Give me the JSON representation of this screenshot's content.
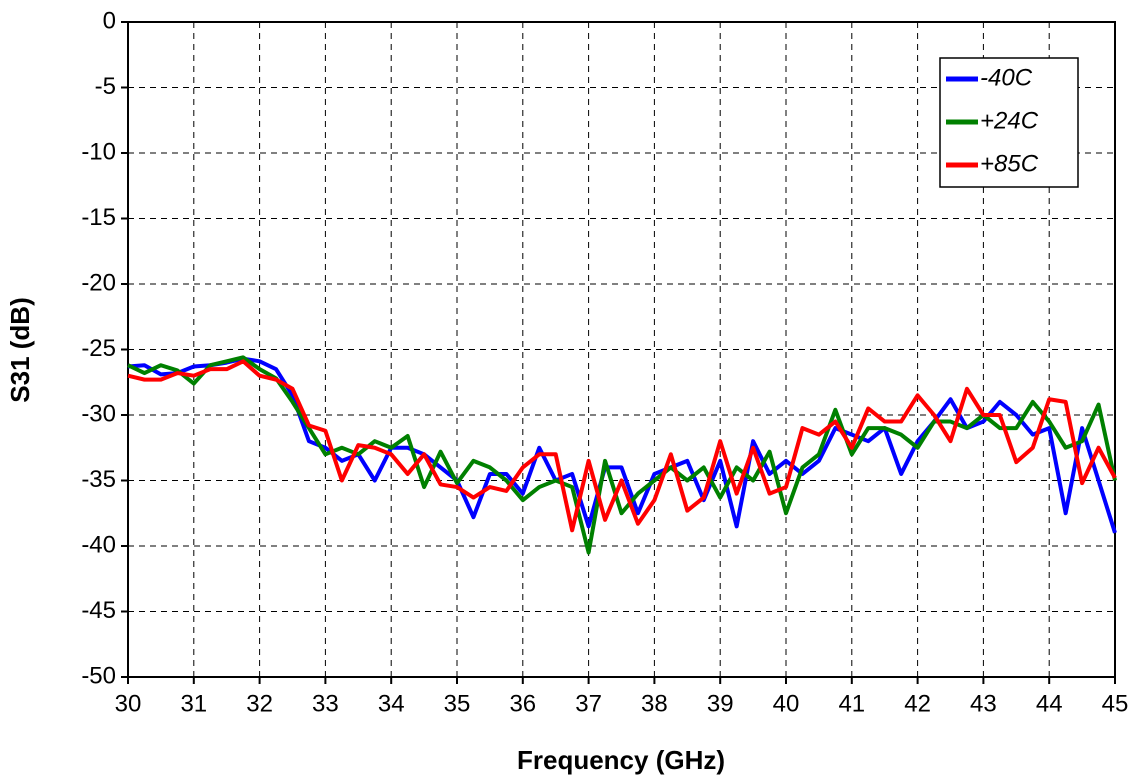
{
  "chart_data": {
    "type": "line",
    "x_label": "Frequency (GHz)",
    "y_label": "S31 (dB)",
    "x": [
      30,
      30.25,
      30.5,
      30.75,
      31,
      31.25,
      31.5,
      31.75,
      32,
      32.25,
      32.5,
      32.75,
      33,
      33.25,
      33.5,
      33.75,
      34,
      34.25,
      34.5,
      34.75,
      35,
      35.25,
      35.5,
      35.75,
      36,
      36.25,
      36.5,
      36.75,
      37,
      37.25,
      37.5,
      37.75,
      38,
      38.25,
      38.5,
      38.75,
      39,
      39.25,
      39.5,
      39.75,
      40,
      40.25,
      40.5,
      40.75,
      41,
      41.25,
      41.5,
      41.75,
      42,
      42.25,
      42.5,
      42.75,
      43,
      43.25,
      43.5,
      43.75,
      44,
      44.25,
      44.5,
      44.75,
      45
    ],
    "series": [
      {
        "name": "-40C",
        "color": "#0000ff",
        "values": [
          -26.3,
          -26.2,
          -26.9,
          -26.8,
          -26.3,
          -26.2,
          -26.0,
          -25.7,
          -25.9,
          -26.5,
          -28.5,
          -32,
          -32.5,
          -33.5,
          -33,
          -35,
          -32.5,
          -32.5,
          -33,
          -34,
          -35,
          -37.8,
          -34.5,
          -34.5,
          -36,
          -32.5,
          -35,
          -34.5,
          -38.5,
          -34,
          -34,
          -37.5,
          -34.5,
          -34,
          -33.5,
          -36.5,
          -33.5,
          -38.5,
          -32,
          -34.5,
          -33.5,
          -34.5,
          -33.5,
          -31,
          -31.5,
          -32,
          -31,
          -34.5,
          -32,
          -30.5,
          -28.8,
          -31,
          -30.5,
          -29,
          -30,
          -31.5,
          -31,
          -37.5,
          -31,
          -35,
          -39
        ]
      },
      {
        "name": "+24C",
        "color": "#008000",
        "values": [
          -26.2,
          -26.8,
          -26.2,
          -26.6,
          -27.6,
          -26.2,
          -25.9,
          -25.6,
          -26.5,
          -27.2,
          -29,
          -31,
          -33,
          -32.5,
          -33,
          -32,
          -32.5,
          -31.6,
          -35.5,
          -32.8,
          -35.2,
          -33.5,
          -34,
          -35,
          -36.5,
          -35.5,
          -35,
          -35.5,
          -40.5,
          -33.5,
          -37.5,
          -36,
          -35,
          -34,
          -35,
          -34,
          -36.3,
          -34,
          -35,
          -32.8,
          -37.5,
          -34,
          -33,
          -29.6,
          -33,
          -31,
          -31,
          -31.5,
          -32.5,
          -30.5,
          -30.5,
          -31,
          -30,
          -31,
          -31,
          -29,
          -30.5,
          -32.5,
          -32,
          -29.2,
          -35
        ]
      },
      {
        "name": "+85C",
        "color": "#ff0000",
        "values": [
          -27,
          -27.3,
          -27.3,
          -26.8,
          -27,
          -26.5,
          -26.5,
          -25.9,
          -27,
          -27.3,
          -28,
          -30.8,
          -31.2,
          -35,
          -32.3,
          -32.5,
          -33,
          -34.5,
          -33,
          -35.3,
          -35.5,
          -36.3,
          -35.5,
          -35.8,
          -34,
          -33,
          -33,
          -38.8,
          -33.5,
          -38,
          -35,
          -38.3,
          -36.5,
          -33,
          -37.3,
          -36.3,
          -32,
          -36,
          -32.5,
          -36,
          -35.5,
          -31,
          -31.5,
          -30.5,
          -32.5,
          -29.5,
          -30.5,
          -30.5,
          -28.5,
          -30,
          -32,
          -28,
          -30,
          -30,
          -33.6,
          -32.5,
          -28.8,
          -29,
          -35.2,
          -32.5,
          -34.8
        ]
      }
    ],
    "xlim": [
      30,
      45
    ],
    "xticks": [
      30,
      31,
      32,
      33,
      34,
      35,
      36,
      37,
      38,
      39,
      40,
      41,
      42,
      43,
      44,
      45
    ],
    "ylim": [
      -50,
      0
    ],
    "yticks": [
      -50,
      -45,
      -40,
      -35,
      -30,
      -25,
      -20,
      -15,
      -10,
      -5,
      0
    ],
    "grid": true,
    "legend": "upper right"
  }
}
